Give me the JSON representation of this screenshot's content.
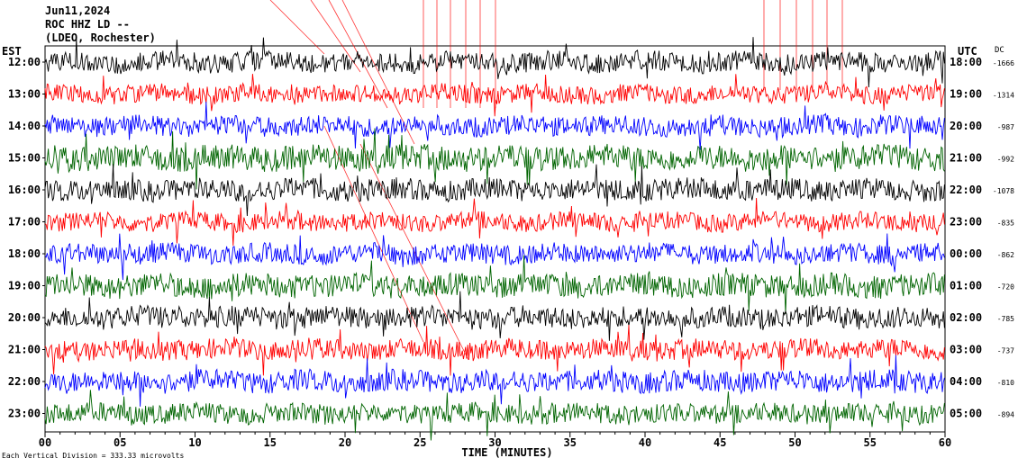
{
  "header": {
    "date": "Jun11,2024",
    "station": "ROC HHZ LD --",
    "network": "(LDEO, Rochester)"
  },
  "left_axis_title": "EST",
  "right_axis_title": "UTC",
  "dc_title": "DC",
  "footer": {
    "xlabel": "TIME (MINUTES)",
    "scale_note": "Each Vertical Division = 333.33 microvolts"
  },
  "trace_colors": [
    "#000000",
    "#ff0000",
    "#0000ff",
    "#006400"
  ],
  "chart_data": {
    "type": "line",
    "xlabel": "TIME (MINUTES)",
    "xlim": [
      0,
      60
    ],
    "x_ticks": [
      "00",
      "05",
      "10",
      "15",
      "20",
      "25",
      "30",
      "35",
      "40",
      "45",
      "50",
      "55",
      "60"
    ],
    "rows": [
      {
        "est": "12:00",
        "utc": "18:00",
        "dc": "-1666",
        "color": "#000000",
        "amp": 11
      },
      {
        "est": "13:00",
        "utc": "19:00",
        "dc": "-1314",
        "color": "#ff0000",
        "amp": 10
      },
      {
        "est": "14:00",
        "utc": "20:00",
        "dc": "-987",
        "color": "#0000ff",
        "amp": 11
      },
      {
        "est": "15:00",
        "utc": "21:00",
        "dc": "-992",
        "color": "#006400",
        "amp": 14
      },
      {
        "est": "16:00",
        "utc": "22:00",
        "dc": "-1078",
        "color": "#000000",
        "amp": 12
      },
      {
        "est": "17:00",
        "utc": "23:00",
        "dc": "-835",
        "color": "#ff0000",
        "amp": 10
      },
      {
        "est": "18:00",
        "utc": "00:00",
        "dc": "-862",
        "color": "#0000ff",
        "amp": 11
      },
      {
        "est": "19:00",
        "utc": "01:00",
        "dc": "-720",
        "color": "#006400",
        "amp": 13
      },
      {
        "est": "20:00",
        "utc": "02:00",
        "dc": "-785",
        "color": "#000000",
        "amp": 12
      },
      {
        "est": "21:00",
        "utc": "03:00",
        "dc": "-737",
        "color": "#ff0000",
        "amp": 11
      },
      {
        "est": "22:00",
        "utc": "04:00",
        "dc": "-810",
        "color": "#0000ff",
        "amp": 12
      },
      {
        "est": "23:00",
        "utc": "05:00",
        "dc": "-894",
        "color": "#006400",
        "amp": 11
      }
    ]
  }
}
